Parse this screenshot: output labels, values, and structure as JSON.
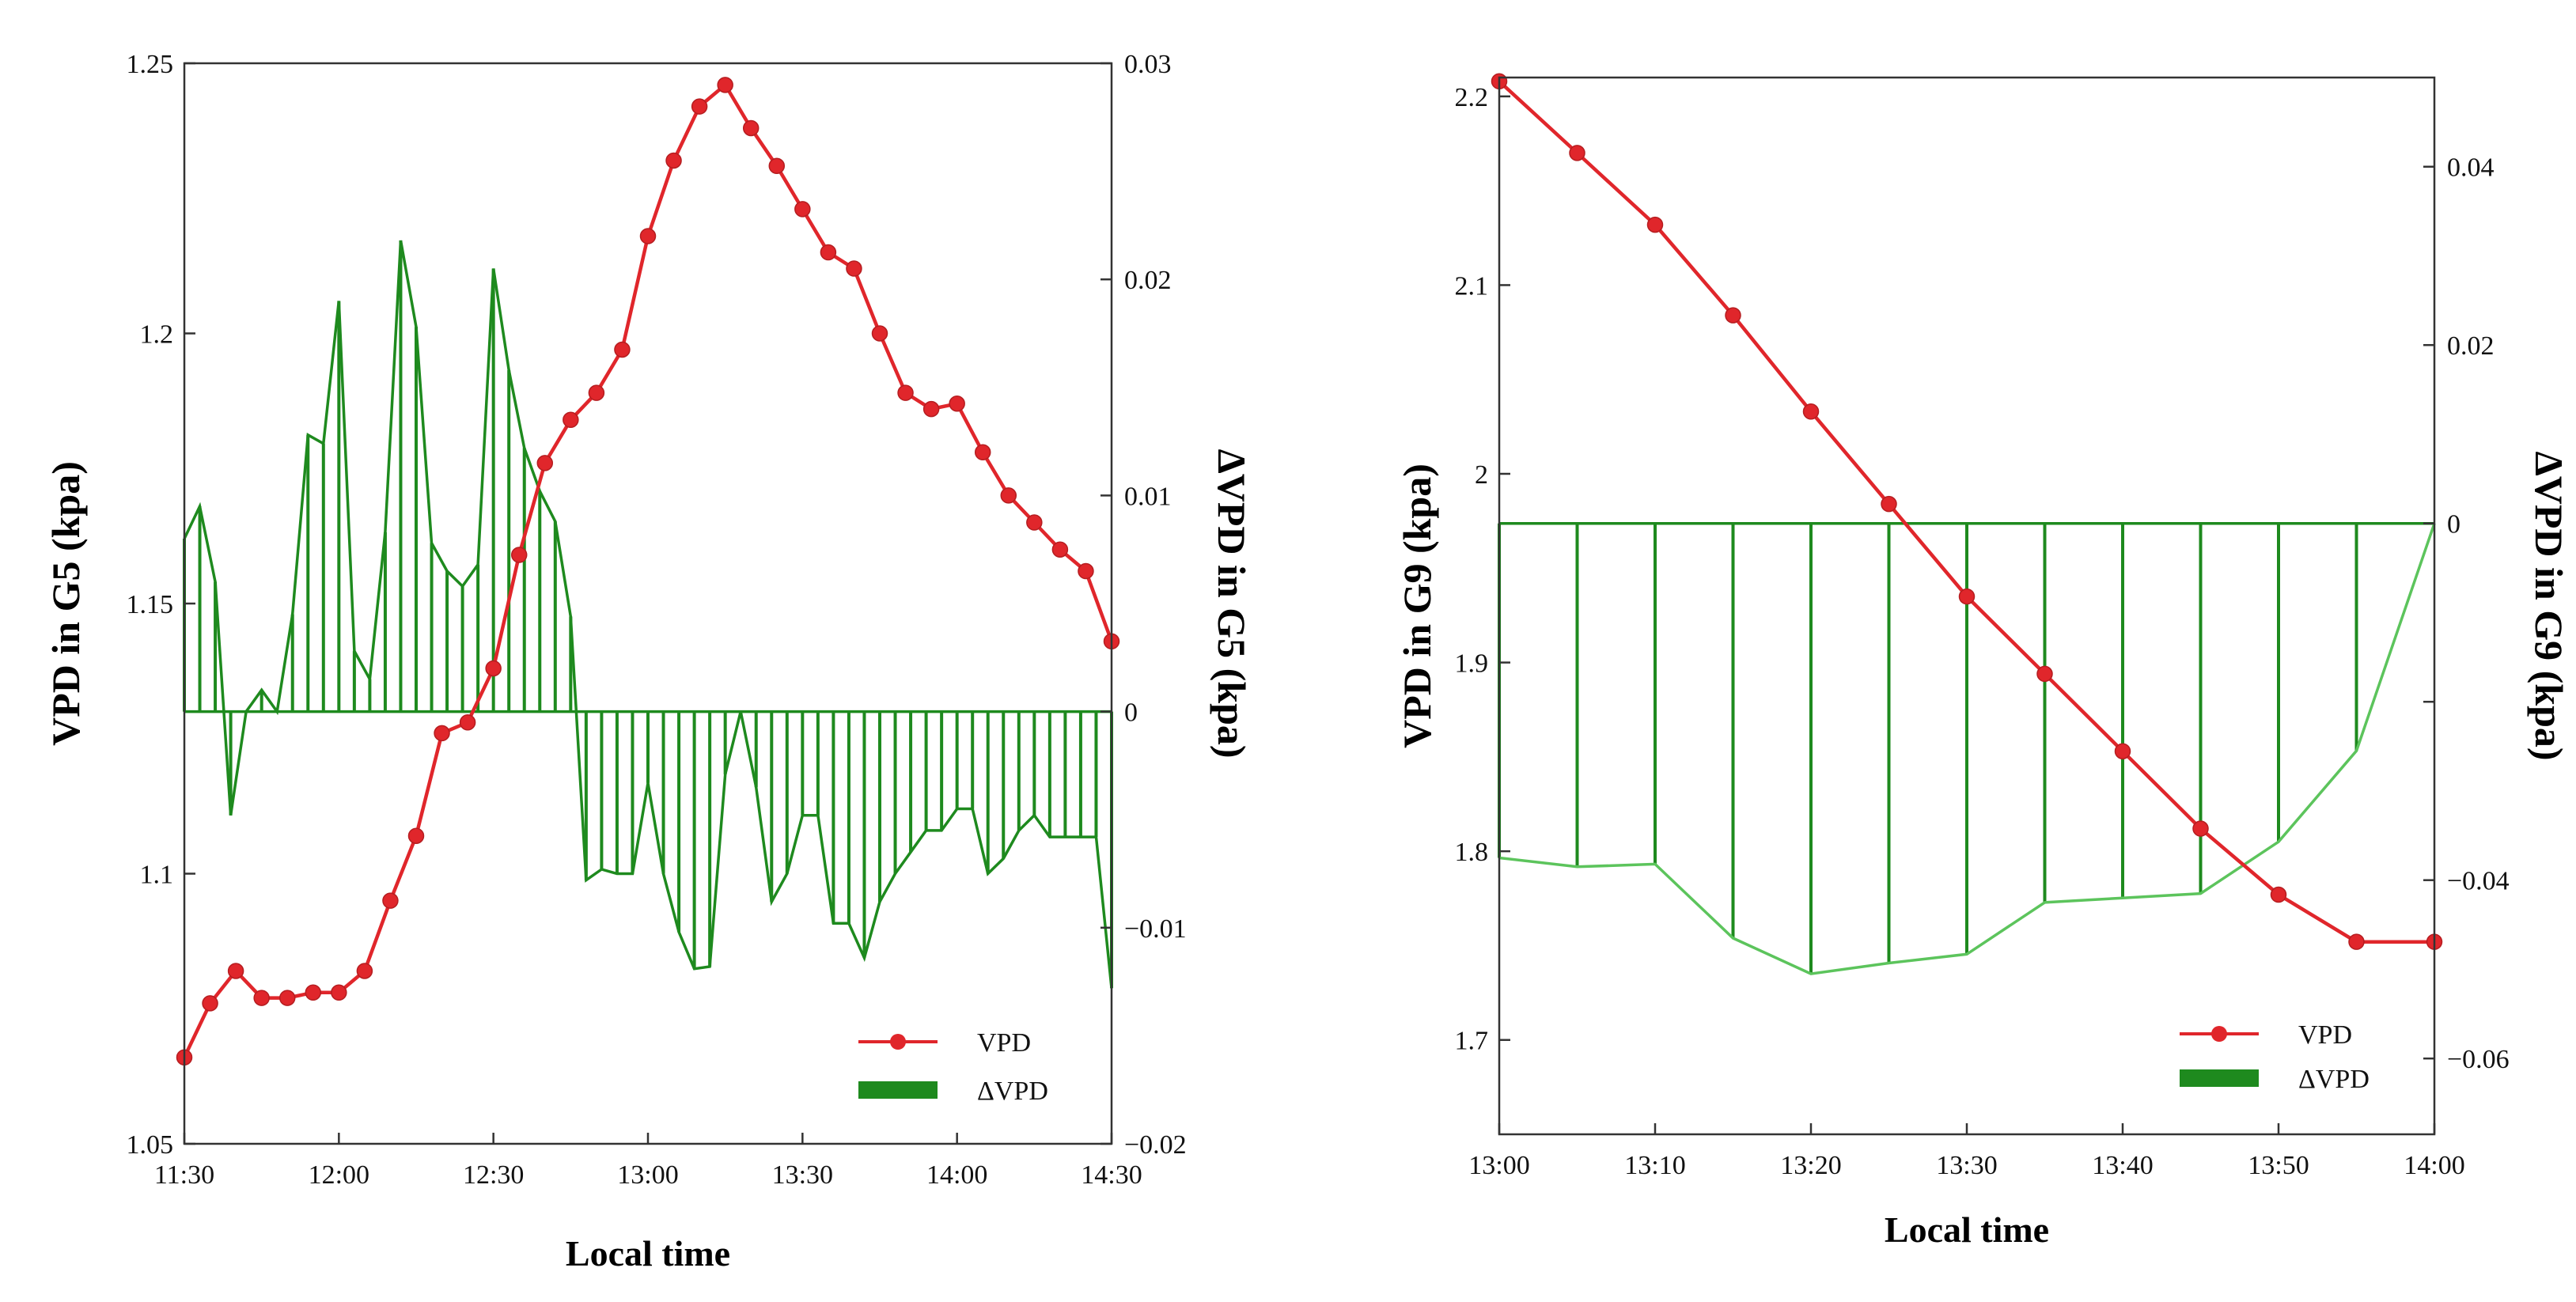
{
  "chart_data": [
    {
      "type": "line",
      "panel": "left",
      "xlabel": "Local time",
      "ylabel": "VPD in G5 (kpa)",
      "y2label": "ΔVPD in G5 (kpa)",
      "xlim": [
        0,
        180
      ],
      "ylim": [
        1.05,
        1.25
      ],
      "y2lim": [
        -0.02,
        0.03
      ],
      "x_ticks": [
        {
          "value": 0,
          "label": "11:30"
        },
        {
          "value": 30,
          "label": "12:00"
        },
        {
          "value": 60,
          "label": "12:30"
        },
        {
          "value": 90,
          "label": "13:00"
        },
        {
          "value": 120,
          "label": "13:30"
        },
        {
          "value": 150,
          "label": "14:00"
        },
        {
          "value": 180,
          "label": "14:30"
        }
      ],
      "y_ticks": [
        {
          "value": 1.05,
          "label": "1.05"
        },
        {
          "value": 1.1,
          "label": "1.1"
        },
        {
          "value": 1.15,
          "label": "1.15"
        },
        {
          "value": 1.2,
          "label": "1.2"
        },
        {
          "value": 1.25,
          "label": "1.25"
        }
      ],
      "y2_ticks": [
        {
          "value": -0.02,
          "label": "−0.02"
        },
        {
          "value": -0.01,
          "label": "−0.01"
        },
        {
          "value": 0,
          "label": "0"
        },
        {
          "value": 0.01,
          "label": "0.01"
        },
        {
          "value": 0.02,
          "label": "0.02"
        },
        {
          "value": 0.03,
          "label": "0.03"
        }
      ],
      "legend_position": "bottom-right",
      "series": [
        {
          "name": "VPD",
          "axis": "left",
          "style": "line-markers",
          "color": "#e0262b",
          "x": [
            0,
            5,
            10,
            15,
            20,
            25,
            30,
            35,
            40,
            45,
            50,
            55,
            60,
            65,
            70,
            75,
            80,
            85,
            90,
            95,
            100,
            105,
            110,
            115,
            120,
            125,
            130,
            135,
            140,
            145,
            150,
            155,
            160,
            165,
            170,
            175,
            180
          ],
          "values": [
            1.066,
            1.076,
            1.082,
            1.077,
            1.077,
            1.078,
            1.078,
            1.082,
            1.095,
            1.107,
            1.126,
            1.128,
            1.138,
            1.159,
            1.176,
            1.184,
            1.189,
            1.197,
            1.218,
            1.232,
            1.242,
            1.246,
            1.238,
            1.231,
            1.223,
            1.215,
            1.212,
            1.2,
            1.189,
            1.186,
            1.187,
            1.178,
            1.17,
            1.165,
            1.16,
            1.156,
            1.143
          ]
        },
        {
          "name": "ΔVPD",
          "axis": "right",
          "style": "stems",
          "color": "#1e8a1e",
          "x": [
            0,
            3,
            6,
            9,
            12,
            15,
            18,
            21,
            24,
            27,
            30,
            33,
            36,
            39,
            42,
            45,
            48,
            51,
            54,
            57,
            60,
            63,
            66,
            69,
            72,
            75,
            78,
            81,
            84,
            87,
            90,
            93,
            96,
            99,
            102,
            105,
            108,
            111,
            114,
            117,
            120,
            123,
            126,
            129,
            132,
            135,
            138,
            141,
            144,
            147,
            150,
            153,
            156,
            159,
            162,
            165,
            168,
            171,
            174,
            177,
            180
          ],
          "values": [
            0.008,
            0.0095,
            0.006,
            -0.0048,
            0,
            0.001,
            0,
            0.0045,
            0.0128,
            0.0124,
            0.019,
            0.0028,
            0.0015,
            0.0083,
            0.0218,
            0.0178,
            0.0078,
            0.0065,
            0.0058,
            0.0068,
            0.0205,
            0.0158,
            0.0122,
            0.0102,
            0.0088,
            0.0044,
            -0.0078,
            -0.0073,
            -0.0075,
            -0.0075,
            -0.0033,
            -0.0075,
            -0.0102,
            -0.0119,
            -0.0118,
            -0.0029,
            0.0,
            -0.0035,
            -0.0088,
            -0.0075,
            -0.0048,
            -0.0048,
            -0.0098,
            -0.0098,
            -0.0114,
            -0.0088,
            -0.0075,
            -0.0065,
            -0.0055,
            -0.0055,
            -0.0045,
            -0.0045,
            -0.0075,
            -0.0068,
            -0.0055,
            -0.0048,
            -0.0058,
            -0.0058,
            -0.0058,
            -0.0058,
            -0.0128
          ]
        }
      ]
    },
    {
      "type": "line",
      "panel": "right",
      "xlabel": "Local time",
      "ylabel": "VPD in G9 (kpa)",
      "y2label": "ΔVPD in G9 (kpa)",
      "xlim": [
        0,
        60
      ],
      "ylim": [
        1.65,
        2.21
      ],
      "y2lim": [
        -0.0685,
        0.05
      ],
      "x_ticks": [
        {
          "value": 0,
          "label": "13:00"
        },
        {
          "value": 10,
          "label": "13:10"
        },
        {
          "value": 20,
          "label": "13:20"
        },
        {
          "value": 30,
          "label": "13:30"
        },
        {
          "value": 40,
          "label": "13:40"
        },
        {
          "value": 50,
          "label": "13:50"
        },
        {
          "value": 60,
          "label": "14:00"
        }
      ],
      "y_ticks": [
        {
          "value": 1.7,
          "label": "1.7"
        },
        {
          "value": 1.8,
          "label": "1.8"
        },
        {
          "value": 1.9,
          "label": "1.9"
        },
        {
          "value": 2.0,
          "label": "2"
        },
        {
          "value": 2.1,
          "label": "2.1"
        },
        {
          "value": 2.2,
          "label": "2.2"
        }
      ],
      "y2_ticks": [
        {
          "value": -0.06,
          "label": "−0.06"
        },
        {
          "value": -0.04,
          "label": "−0.04"
        },
        {
          "value": -0.02,
          "label": ""
        },
        {
          "value": 0,
          "label": "0"
        },
        {
          "value": 0.02,
          "label": "0.02"
        },
        {
          "value": 0.04,
          "label": "0.04"
        }
      ],
      "legend_position": "bottom-right",
      "series": [
        {
          "name": "VPD",
          "axis": "left",
          "style": "line-markers",
          "color": "#e0262b",
          "x": [
            0,
            5,
            10,
            15,
            20,
            25,
            30,
            35,
            40,
            45,
            50,
            55,
            60
          ],
          "values": [
            2.208,
            2.17,
            2.132,
            2.084,
            2.033,
            1.984,
            1.935,
            1.894,
            1.853,
            1.812,
            1.777,
            1.752,
            1.752
          ]
        },
        {
          "name": "ΔVPD",
          "axis": "right",
          "style": "stems",
          "color": "#1e8a1e",
          "x": [
            0,
            5,
            10,
            15,
            20,
            25,
            30,
            35,
            40,
            45,
            50,
            55,
            60
          ],
          "values": [
            -0.0375,
            -0.0385,
            -0.0382,
            -0.0465,
            -0.0505,
            -0.0493,
            -0.0483,
            -0.0425,
            -0.042,
            -0.0415,
            -0.0357,
            -0.0255,
            0
          ]
        }
      ]
    }
  ]
}
